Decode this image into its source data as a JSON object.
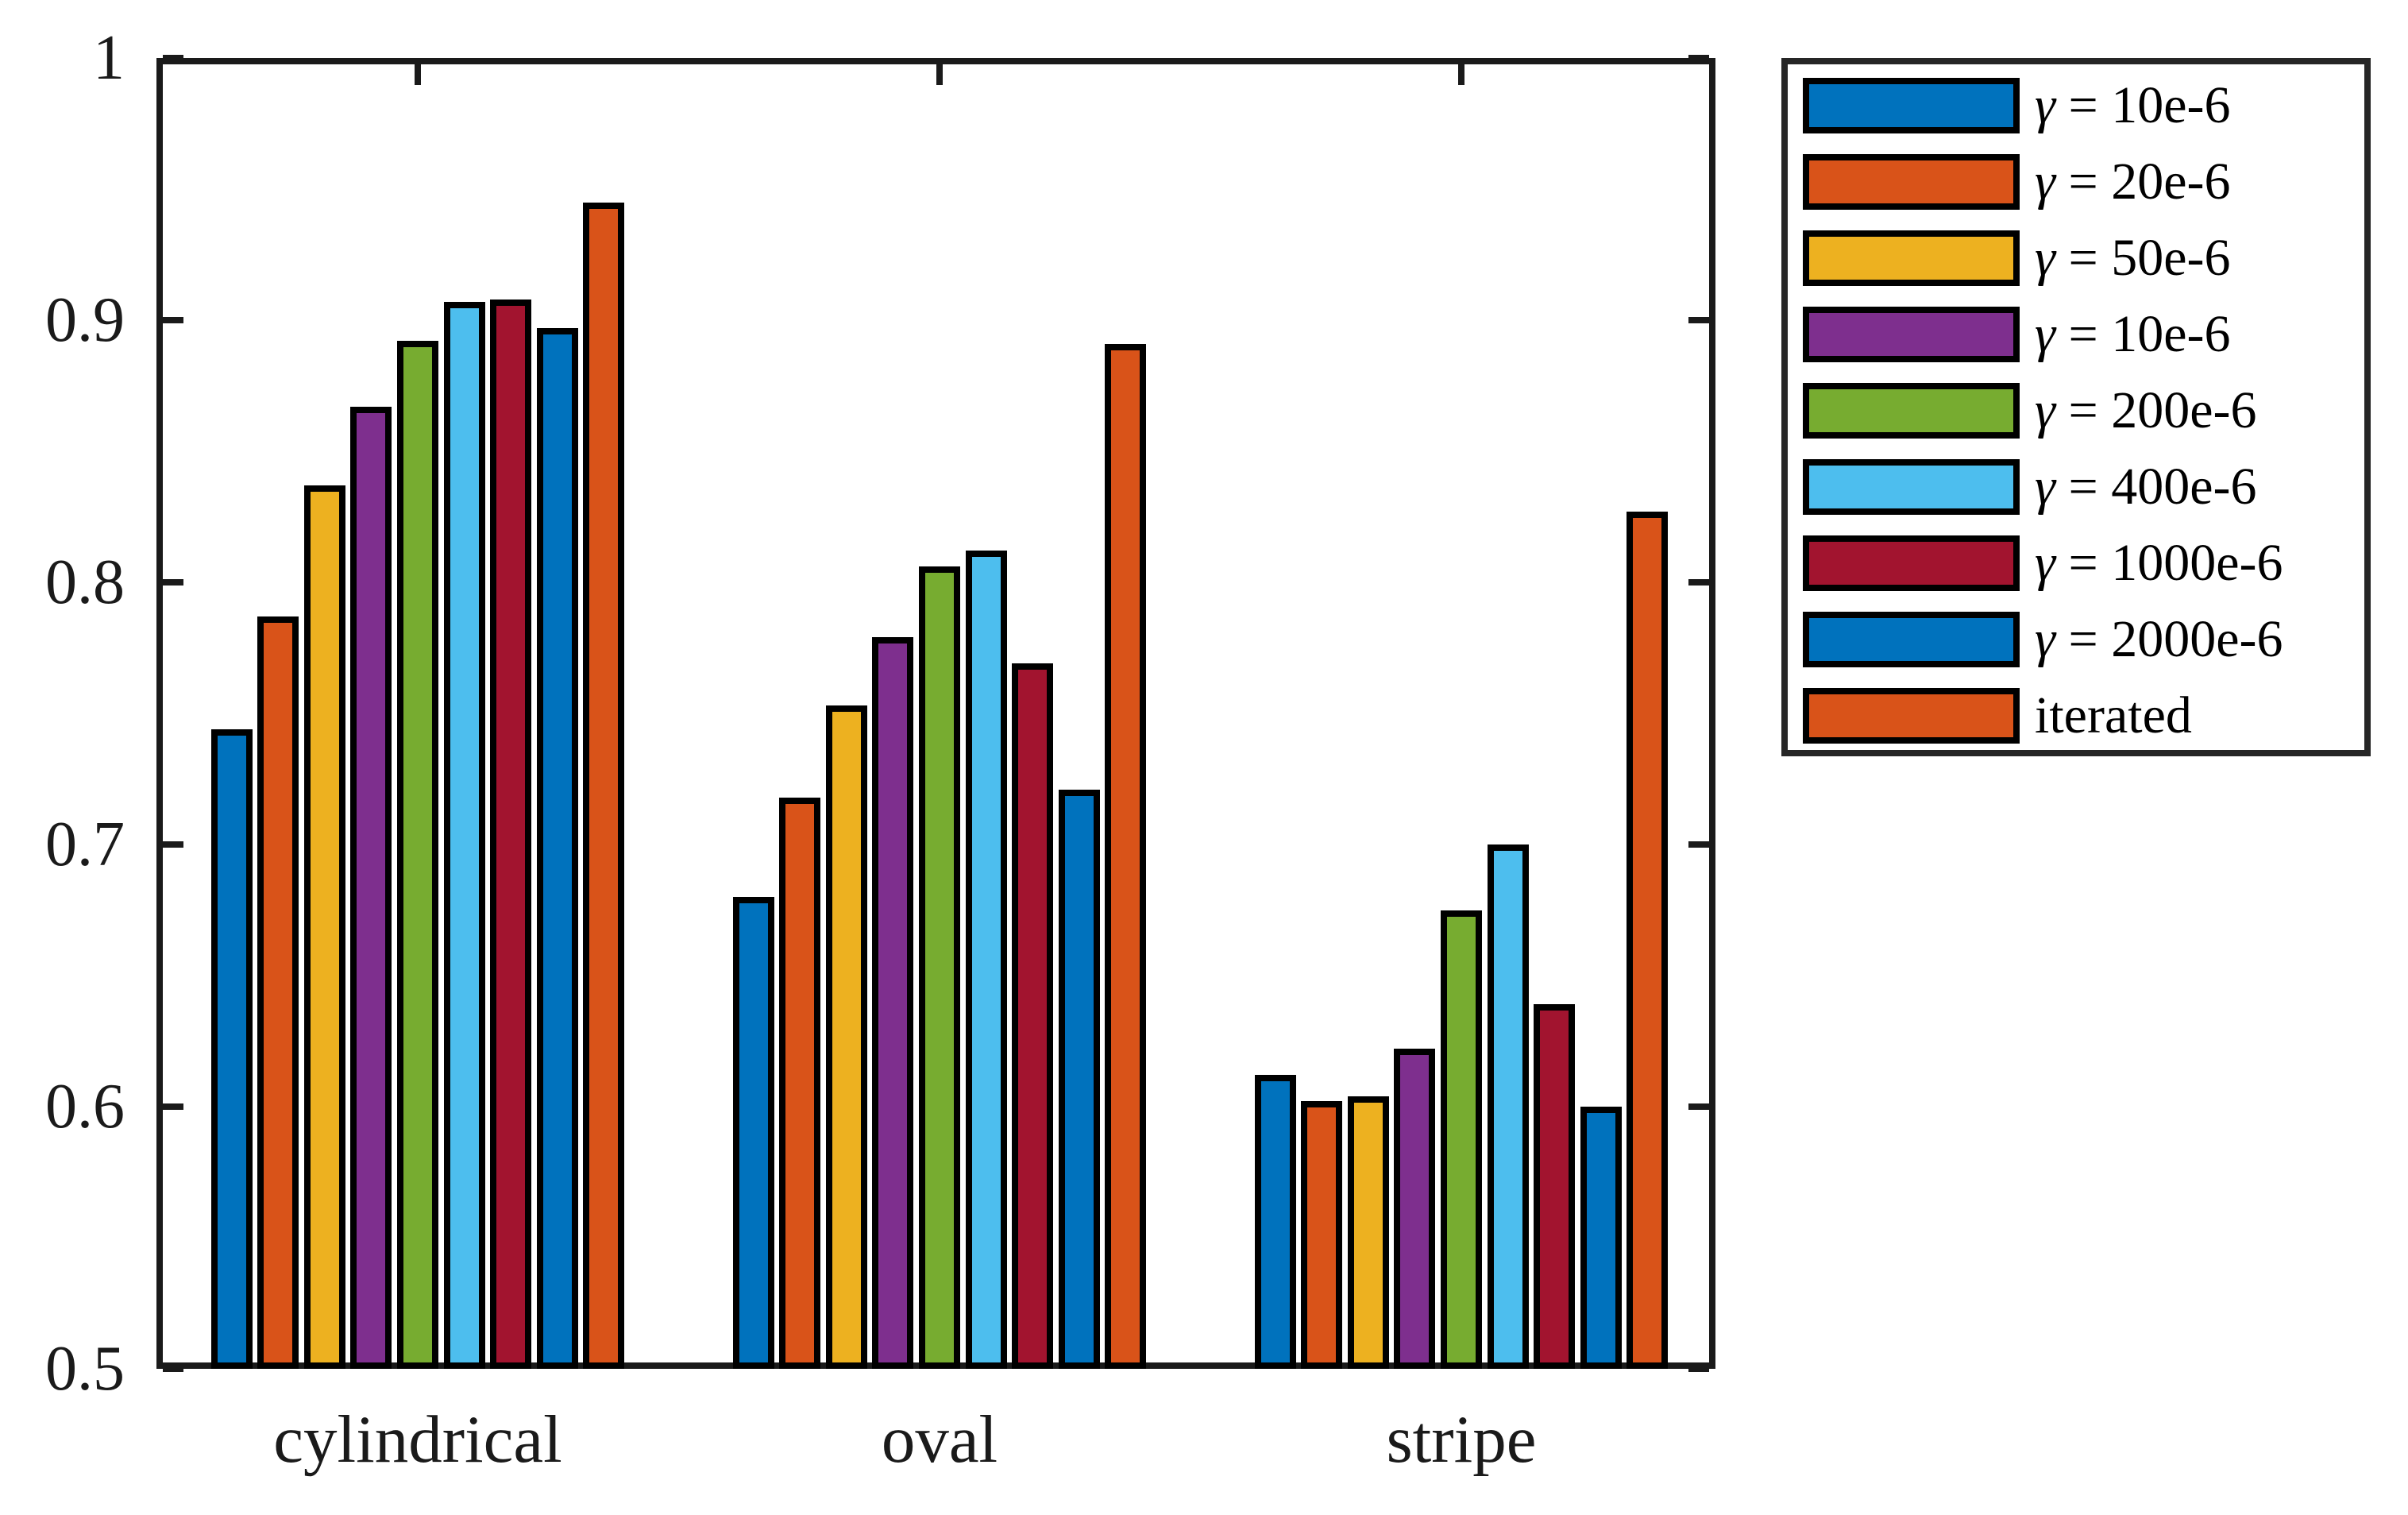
{
  "figure": {
    "background": "#ffffff",
    "axis_color": "#1a1a1a",
    "bar_edge_color": "#000000"
  },
  "chart_data": {
    "type": "bar",
    "title": "",
    "xlabel": "",
    "ylabel": "",
    "categories": [
      "cylindrical",
      "oval",
      "stripe"
    ],
    "series": [
      {
        "name": "γ = 10e-6",
        "color": "#0072BD",
        "values": [
          0.744,
          0.68,
          0.612
        ]
      },
      {
        "name": "γ = 20e-6",
        "color": "#D95319",
        "values": [
          0.787,
          0.718,
          0.602
        ]
      },
      {
        "name": "γ = 50e-6",
        "color": "#EDB120",
        "values": [
          0.837,
          0.753,
          0.604
        ]
      },
      {
        "name": "γ = 10e-6",
        "color": "#7E2F8E",
        "values": [
          0.867,
          0.779,
          0.622
        ]
      },
      {
        "name": "γ = 200e-6",
        "color": "#77AC30",
        "values": [
          0.892,
          0.806,
          0.675
        ]
      },
      {
        "name": "γ = 400e-6",
        "color": "#4DBEEE",
        "values": [
          0.907,
          0.812,
          0.7
        ]
      },
      {
        "name": "γ = 1000e-6",
        "color": "#A2142F",
        "values": [
          0.908,
          0.769,
          0.639
        ]
      },
      {
        "name": "γ = 2000e-6",
        "color": "#0072BD",
        "values": [
          0.897,
          0.721,
          0.6
        ]
      },
      {
        "name": "iterated",
        "color": "#D95319",
        "values": [
          0.945,
          0.891,
          0.827
        ]
      }
    ],
    "ylim": [
      0.5,
      1.0
    ],
    "yticks": [
      1,
      0.9,
      0.8,
      0.7,
      0.6,
      0.5
    ],
    "ytick_labels": [
      "1",
      "0.9",
      "0.8",
      "0.7",
      "0.6",
      "0.5"
    ],
    "grid": false,
    "legend_position": "outside-right",
    "legend_entries": [
      "γ = 10e-6",
      "γ = 20e-6",
      "γ = 50e-6",
      "γ = 10e-6",
      "γ = 200e-6",
      "γ = 400e-6",
      "γ = 1000e-6",
      "γ = 2000e-6",
      "iterated"
    ]
  }
}
